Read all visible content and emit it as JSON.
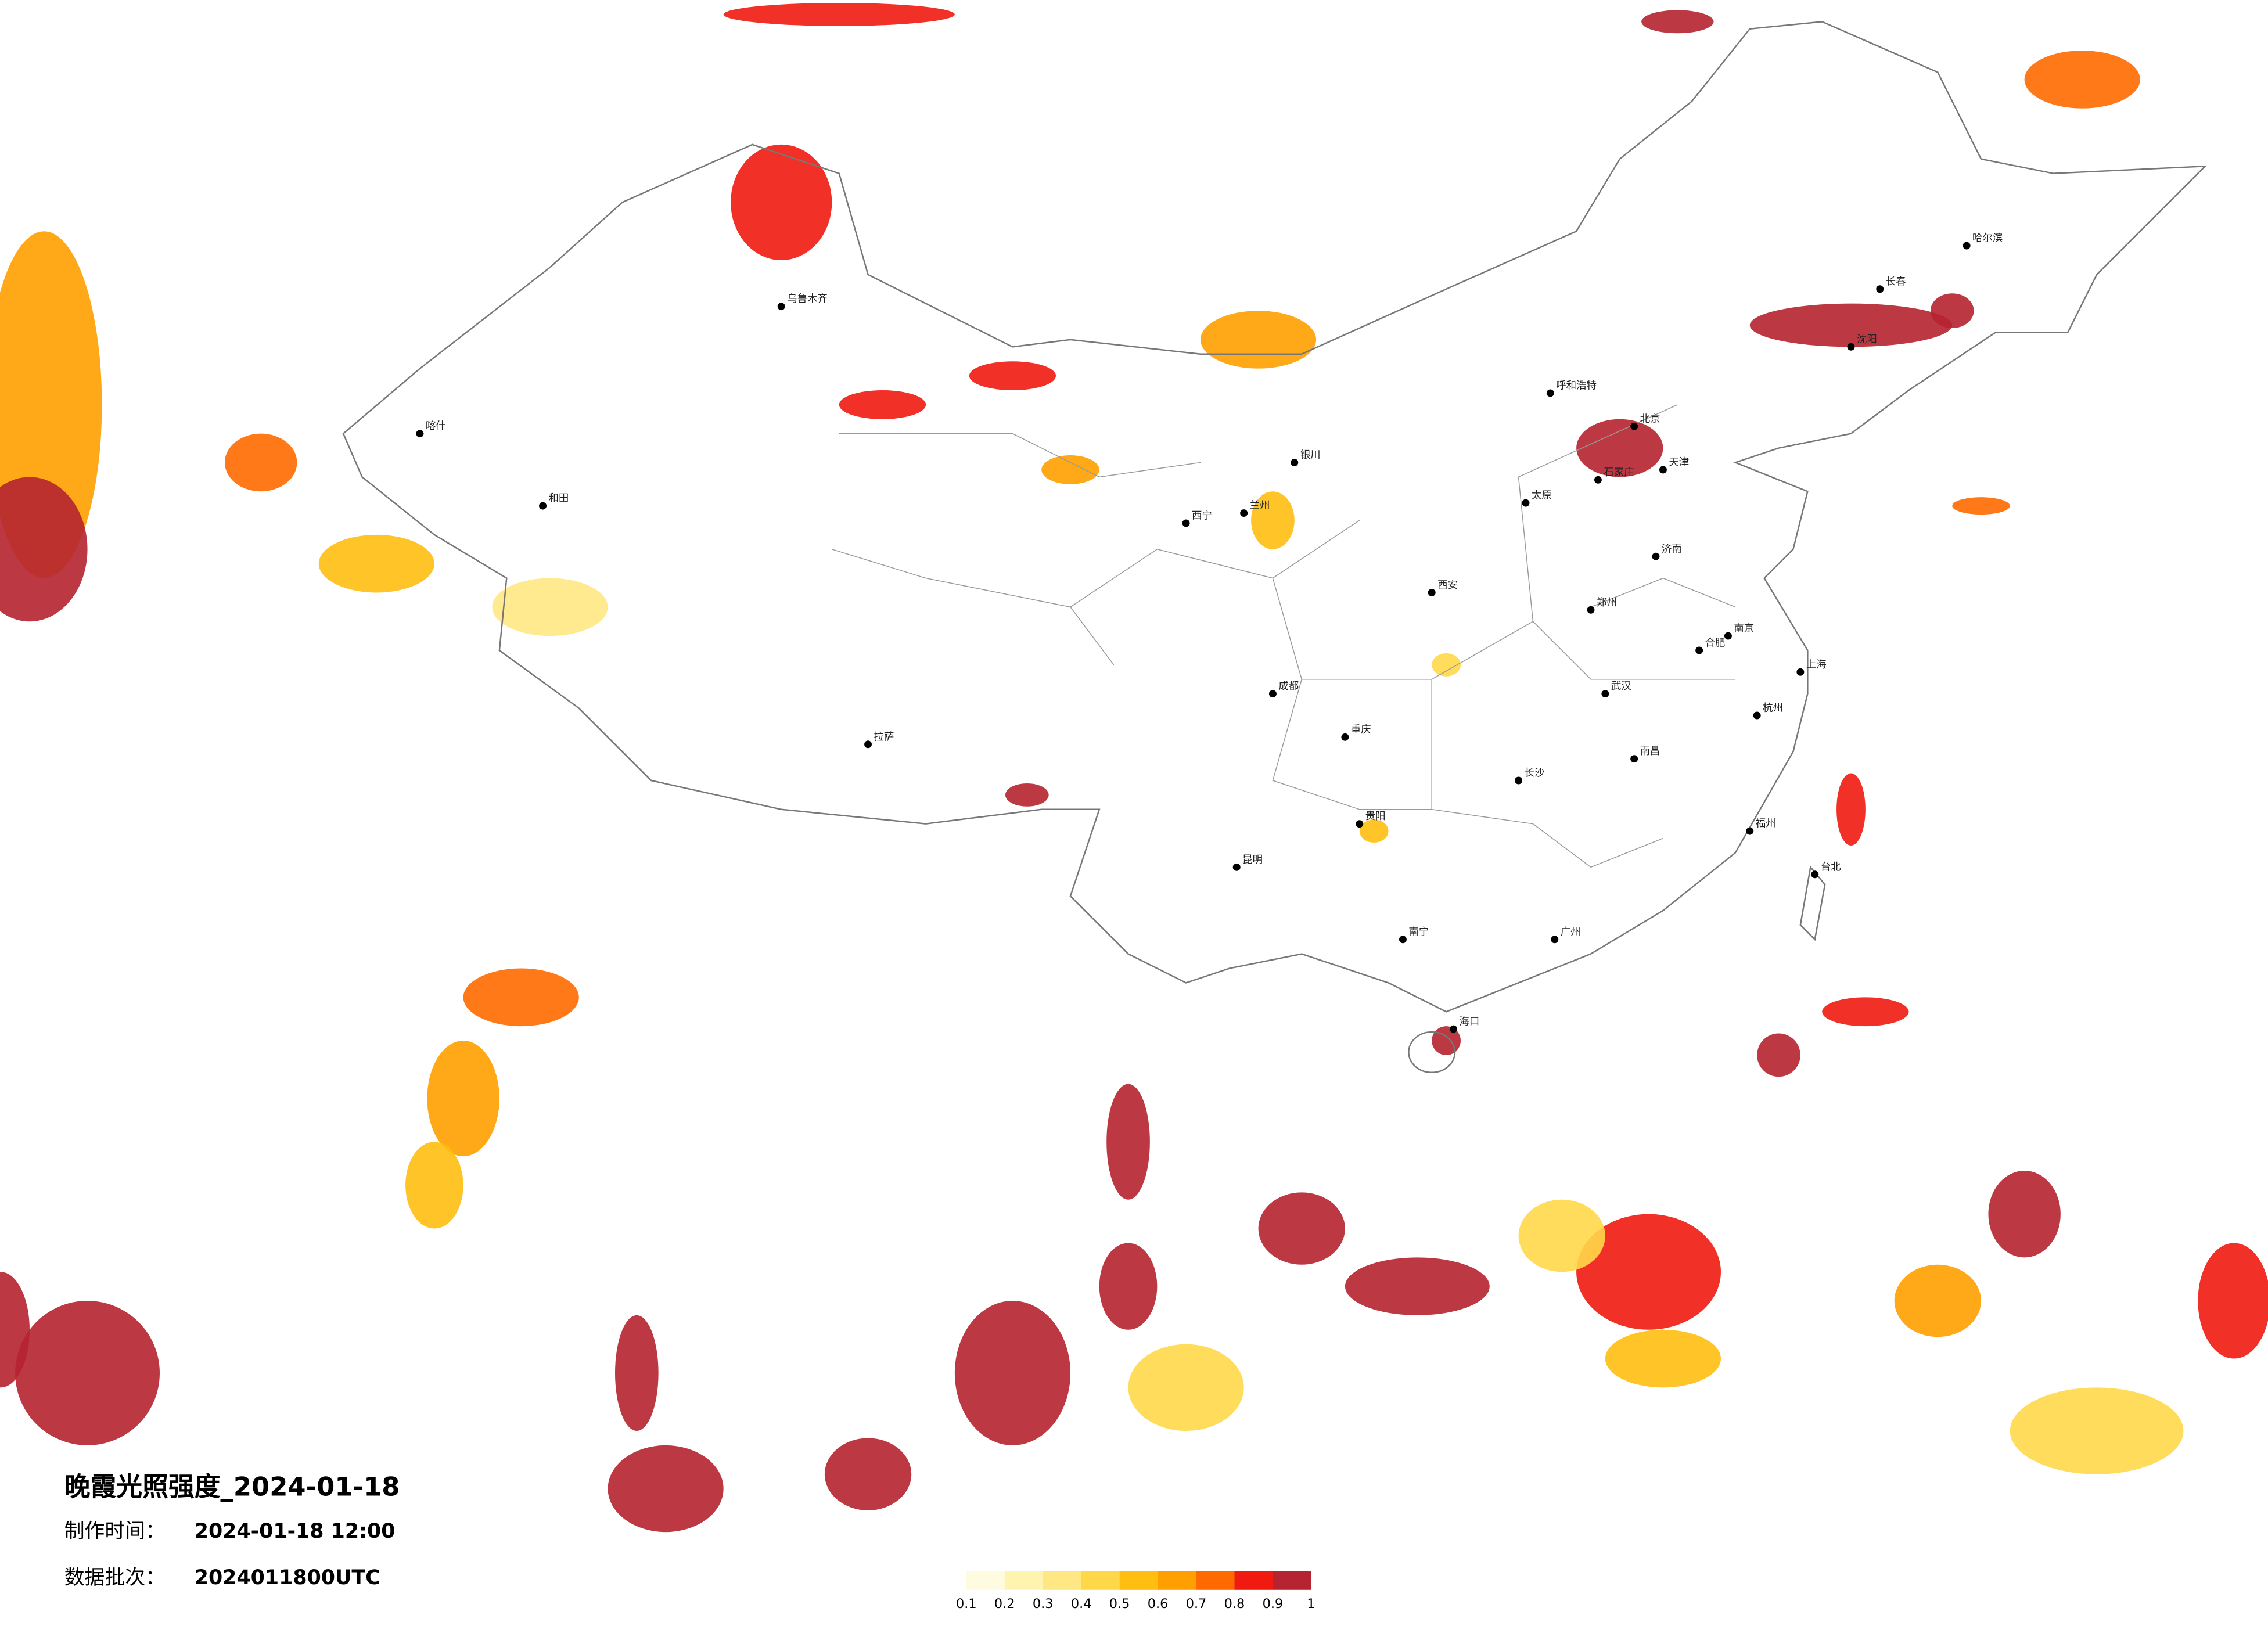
{
  "map": {
    "title": "晚霞光照强度_2024-01-18",
    "made_label": "制作时间：",
    "made_time": "2024-01-18 12:00",
    "batch_label": "数据批次：",
    "batch": "2024011800UTC"
  },
  "colorbar": {
    "ticks": [
      0.1,
      0.2,
      0.3,
      0.4,
      0.5,
      0.6,
      0.7,
      0.8,
      0.9,
      1
    ],
    "colors": [
      "#fffbe0",
      "#fff3b0",
      "#ffe884",
      "#ffd84a",
      "#ffbe10",
      "#ffa000",
      "#ff6a00",
      "#f01a10",
      "#b52430"
    ]
  },
  "cities": [
    "北京",
    "天津",
    "石家庄",
    "太原",
    "呼和浩特",
    "沈阳",
    "长春",
    "哈尔滨",
    "济南",
    "郑州",
    "西安",
    "兰州",
    "西宁",
    "银川",
    "乌鲁木齐",
    "拉萨",
    "成都",
    "重庆",
    "贵阳",
    "昆明",
    "南宁",
    "广州",
    "长沙",
    "武汉",
    "南昌",
    "合肥",
    "南京",
    "上海",
    "杭州",
    "福州",
    "海口",
    "台北",
    "喀什",
    "和田"
  ],
  "heat": [
    0.8,
    0.6,
    0.9,
    0.7,
    0.6,
    0.9,
    0.9,
    1,
    0.7,
    0.5,
    0.7,
    0.6,
    0.5,
    1,
    1,
    0.4,
    1,
    0.8,
    0.5,
    0.6,
    0.9,
    0.8,
    0.4,
    1,
    1,
    1,
    0.9,
    0.9,
    1,
    1,
    1,
    1,
    0.4,
    0.8,
    0.8,
    0.6,
    0.8,
    0.9,
    0.8,
    0.7,
    0.8,
    0.3,
    0.5,
    0.9,
    0.5,
    0.4
  ]
}
